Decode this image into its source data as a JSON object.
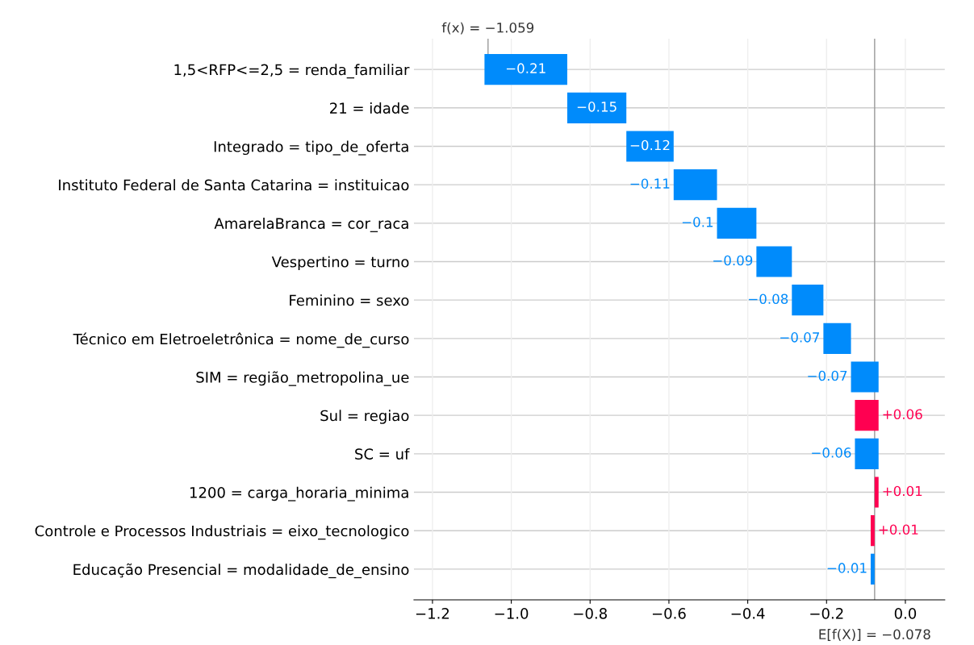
{
  "chart_data": {
    "type": "bar",
    "orientation": "horizontal",
    "categories": [
      "1,5<RFP<=2,5 = renda_familiar",
      "21 = idade",
      "Integrado = tipo_de_oferta",
      "Instituto Federal de Santa Catarina = instituicao",
      "AmarelaBranca = cor_raca",
      "Vespertino = turno",
      "Feminino = sexo",
      "Técnico em Eletroeletrônica = nome_de_curso",
      "SIM = região_metropolina_ue",
      "Sul = regiao",
      "SC = uf",
      "1200 = carga_horaria_minima",
      "Controle e Processos Industriais = eixo_tecnologico",
      "Educação Presencial = modalidade_de_ensino"
    ],
    "values": [
      -0.21,
      -0.15,
      -0.12,
      -0.11,
      -0.1,
      -0.09,
      -0.08,
      -0.07,
      -0.07,
      0.06,
      -0.06,
      0.01,
      0.01,
      -0.01
    ],
    "base": [
      -0.858,
      -0.708,
      -0.588,
      -0.478,
      -0.378,
      -0.288,
      -0.208,
      -0.138,
      -0.068,
      -0.128,
      -0.068,
      -0.078,
      -0.088,
      -0.078
    ],
    "colors": [
      "#008bfb",
      "#008bfb",
      "#008bfb",
      "#008bfb",
      "#008bfb",
      "#008bfb",
      "#008bfb",
      "#008bfb",
      "#008bfb",
      "#ff0051",
      "#008bfb",
      "#ff0051",
      "#ff0051",
      "#008bfb"
    ],
    "value_labels": [
      "−0.21",
      "−0.15",
      "−0.12",
      "−0.11",
      "−0.1",
      "−0.09",
      "−0.08",
      "−0.07",
      "−0.07",
      "+0.06",
      "−0.06",
      "+0.01",
      "+0.01",
      "−0.01"
    ],
    "xlim": [
      -1.247,
      0.1
    ],
    "xticks": [
      {
        "value": -1.2,
        "label": "−1.2"
      },
      {
        "value": -1.0,
        "label": "−1.0"
      },
      {
        "value": -0.8,
        "label": "−0.8"
      },
      {
        "value": -0.6,
        "label": "−0.6"
      },
      {
        "value": -0.4,
        "label": "−0.4"
      },
      {
        "value": -0.2,
        "label": "−0.2"
      },
      {
        "value": 0.0,
        "label": "0.0"
      }
    ],
    "ref_lines": [
      {
        "axis": "x",
        "value": -1.059,
        "label": "f(x) = −1.059",
        "color": "#999999"
      },
      {
        "axis": "x",
        "value": -0.078,
        "label": "E[f(X)] = −0.078",
        "color": "#999999"
      }
    ],
    "grid": true,
    "legend": false
  }
}
